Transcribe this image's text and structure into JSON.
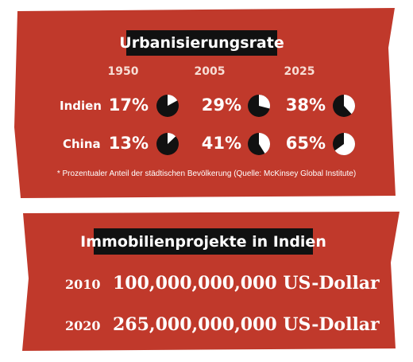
{
  "colors": {
    "panel": "#c0392b",
    "pie_fill": "#111111",
    "pie_rest": "#ffffff"
  },
  "chart_data": {
    "type": "pie",
    "title": "Urbanisierungsrate",
    "categories": [
      "1950",
      "2005",
      "2025"
    ],
    "series": [
      {
        "name": "Indien",
        "values": [
          17,
          29,
          38
        ],
        "labels": [
          "17%",
          "29%",
          "38%"
        ]
      },
      {
        "name": "China",
        "values": [
          13,
          41,
          65
        ],
        "labels": [
          "13%",
          "41%",
          "65%"
        ]
      }
    ],
    "unit": "%",
    "footnote": "* Prozentualer Anteil der städtischen Bevölkerung (Quelle: McKinsey Global Institute)"
  },
  "real_estate": {
    "title": "Immobilienprojekte in Indien",
    "rows": [
      {
        "year": "2010",
        "amount": "100,000,000,000 US-Dollar"
      },
      {
        "year": "2020",
        "amount": "265,000,000,000 US-Dollar"
      }
    ]
  }
}
